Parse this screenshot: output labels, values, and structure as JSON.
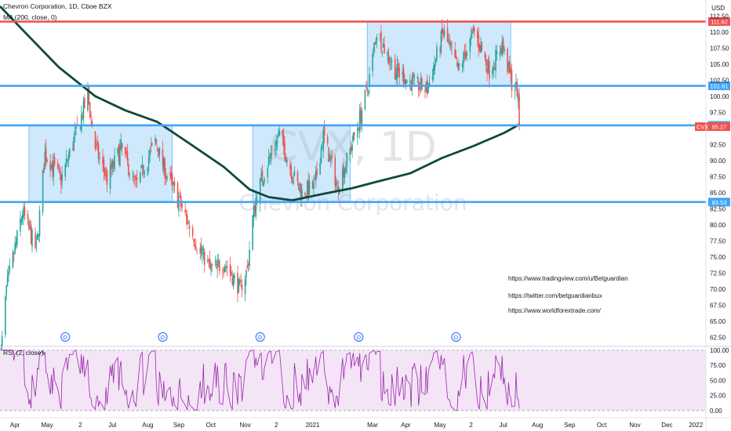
{
  "chart_data": {
    "type": "candlestick",
    "header": {
      "symbol_line": "Chevron Corporation, 1D, Cboe BZX",
      "ma_line": "MA (200, close, 0)",
      "rsi_line": "RSI (2, close)"
    },
    "watermark": {
      "ticker": "CVX, 1D",
      "name": "Chevron Corporation"
    },
    "currency": "USD",
    "price_ticks": [
      112.5,
      110.0,
      107.5,
      105.0,
      102.5,
      100.0,
      97.5,
      92.5,
      90.0,
      87.5,
      85.0,
      82.5,
      80.0,
      77.5,
      75.0,
      72.5,
      70.0,
      67.5,
      65.0,
      62.5
    ],
    "rsi_ticks": [
      100.0,
      75.0,
      50.0,
      25.0,
      0.0
    ],
    "x_labels": [
      "Apr",
      "May",
      "2",
      "Jul",
      "Aug",
      "Sep",
      "Oct",
      "Nov",
      "2",
      "2021",
      "Mar",
      "Apr",
      "May",
      "2",
      "Jul",
      "Aug",
      "Sep",
      "Oct",
      "Nov",
      "Dec",
      "2022"
    ],
    "ylim": [
      62.5,
      114
    ],
    "levels": [
      {
        "label": "111.62",
        "value": 111.62,
        "color": "#ef5350"
      },
      {
        "label": "101.61",
        "value": 101.61,
        "color": "#42a5f5"
      },
      {
        "label": "95.47",
        "value": 95.47,
        "color": "#42a5f5"
      },
      {
        "label": "83.53",
        "value": 83.53,
        "color": "#42a5f5"
      }
    ],
    "last_price": {
      "label": "CVX",
      "value": "95.27",
      "color": "#ef5350"
    },
    "boxes": [
      {
        "from": "2020-04-14",
        "to": "2020-08-26",
        "top": 95.47,
        "bottom": 83.53
      },
      {
        "from": "2020-11-09",
        "to": "2021-02-08",
        "top": 95.47,
        "bottom": 83.53
      },
      {
        "from": "2021-02-24",
        "to": "2021-07-08",
        "top": 111.62,
        "bottom": 101.61
      }
    ],
    "dividend_marker": "D",
    "dividends": [
      "2020-05-18",
      "2020-08-17",
      "2020-11-16",
      "2021-02-16",
      "2021-05-18"
    ],
    "series": [
      {
        "name": "MA (200, close, 0)",
        "color": "#0b4a3c",
        "points": [
          [
            "2020-03-18",
            114
          ],
          [
            "2020-04-10",
            110
          ],
          [
            "2020-05-12",
            104.5
          ],
          [
            "2020-06-15",
            100
          ],
          [
            "2020-07-13",
            97.8
          ],
          [
            "2020-08-12",
            96
          ],
          [
            "2020-09-14",
            92.3
          ],
          [
            "2020-10-13",
            89
          ],
          [
            "2020-11-06",
            85.5
          ],
          [
            "2020-11-24",
            84.3
          ],
          [
            "2020-12-16",
            83.8
          ],
          [
            "2021-01-14",
            84.8
          ],
          [
            "2021-02-10",
            85.7
          ],
          [
            "2021-03-05",
            86.7
          ],
          [
            "2021-04-05",
            88
          ],
          [
            "2021-05-05",
            90.4
          ],
          [
            "2021-06-04",
            92.3
          ],
          [
            "2021-07-02",
            94.3
          ],
          [
            "2021-07-16",
            95.6
          ]
        ]
      }
    ],
    "annotations": [
      "https://www.tradingview.com/u/Betguardian",
      "https://twitter.com/betguardianbux",
      "https://www.worldforextrade.com/"
    ],
    "colors": {
      "up": "#26a69a",
      "down": "#ef5350",
      "ma": "#0b4a3c",
      "rsi": "#9c27b0",
      "rsi_band": "#f3e5f5",
      "box": "#bbdefb"
    }
  }
}
